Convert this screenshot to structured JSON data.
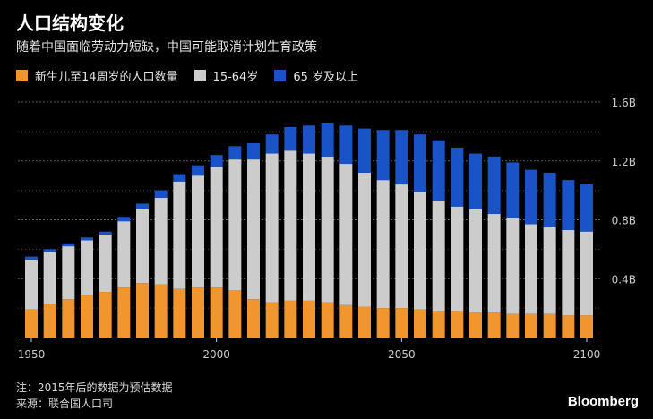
{
  "header": {
    "title": "人口结构变化",
    "subtitle": "随着中国面临劳动力短缺，中国可能取消计划生育政策"
  },
  "colors": {
    "child": "#f0962d",
    "working": "#cccccc",
    "elderly": "#1a52c8",
    "grid": "#6b6b6b",
    "axis_text": "#cccccc"
  },
  "footnotes": {
    "note": "注：2015年后的数据为预估数据",
    "source": "来源：联合国人口司"
  },
  "brand": "Bloomberg",
  "chart_data": {
    "type": "bar",
    "stacked": true,
    "title": "人口结构变化",
    "subtitle": "随着中国面临劳动力短缺，中国可能取消计划生育政策",
    "x": [
      1950,
      1955,
      1960,
      1965,
      1970,
      1975,
      1980,
      1985,
      1990,
      1995,
      2000,
      2005,
      2010,
      2015,
      2020,
      2025,
      2030,
      2035,
      2040,
      2045,
      2050,
      2055,
      2060,
      2065,
      2070,
      2075,
      2080,
      2085,
      2090,
      2095,
      2100
    ],
    "x_ticks": [
      1950,
      2000,
      2050,
      2100
    ],
    "x_tick_labels": [
      "1950",
      "2000",
      "2050",
      "2100"
    ],
    "y_ticks": [
      0.4,
      0.8,
      1.2,
      1.6
    ],
    "y_tick_labels": [
      "0.4B",
      "0.8B",
      "1.2B",
      "1.6B"
    ],
    "ylim": [
      0,
      1.6
    ],
    "units": "billions",
    "grid": true,
    "legend_position": "top-left",
    "series": [
      {
        "name": "新生儿至14周岁的人口数量",
        "color": "#f0962d",
        "values": [
          0.19,
          0.23,
          0.26,
          0.29,
          0.31,
          0.34,
          0.37,
          0.36,
          0.33,
          0.34,
          0.34,
          0.32,
          0.26,
          0.24,
          0.25,
          0.25,
          0.24,
          0.22,
          0.21,
          0.2,
          0.2,
          0.19,
          0.18,
          0.18,
          0.17,
          0.17,
          0.16,
          0.16,
          0.16,
          0.15,
          0.15
        ]
      },
      {
        "name": "15-64岁",
        "color": "#cccccc",
        "values": [
          0.34,
          0.35,
          0.36,
          0.37,
          0.39,
          0.45,
          0.5,
          0.59,
          0.73,
          0.76,
          0.82,
          0.89,
          0.95,
          1.01,
          1.02,
          1.0,
          0.99,
          0.96,
          0.91,
          0.87,
          0.84,
          0.8,
          0.75,
          0.71,
          0.7,
          0.67,
          0.65,
          0.61,
          0.59,
          0.58,
          0.57
        ]
      },
      {
        "name": "65 岁及以上",
        "color": "#1a52c8",
        "values": [
          0.02,
          0.02,
          0.02,
          0.02,
          0.02,
          0.03,
          0.04,
          0.05,
          0.05,
          0.07,
          0.08,
          0.09,
          0.11,
          0.13,
          0.16,
          0.19,
          0.23,
          0.26,
          0.3,
          0.34,
          0.37,
          0.39,
          0.41,
          0.4,
          0.38,
          0.39,
          0.38,
          0.37,
          0.37,
          0.34,
          0.32
        ]
      }
    ]
  }
}
